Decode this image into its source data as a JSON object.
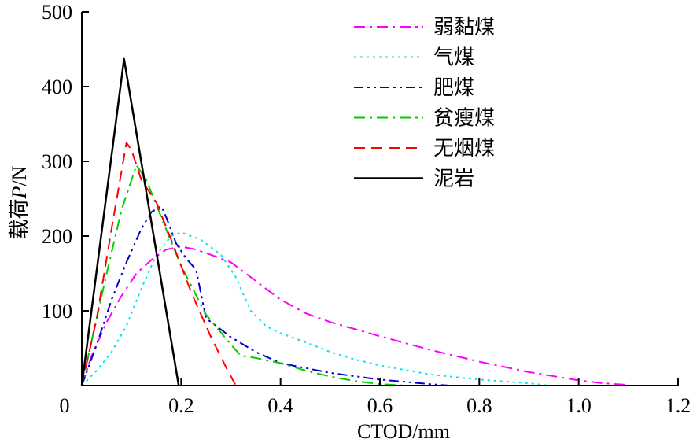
{
  "chart_data": {
    "type": "line",
    "xlabel": "CTOD/mm",
    "ylabel_prefix": "载荷",
    "ylabel_var": "P",
    "ylabel_suffix": "/N",
    "xlim": [
      0,
      1.2
    ],
    "ylim": [
      0,
      500
    ],
    "xticks": [
      0,
      0.2,
      0.4,
      0.6,
      0.8,
      1.0,
      1.2
    ],
    "xtick_labels": [
      "0",
      "0.2",
      "0.4",
      "0.6",
      "0.8",
      "1.0",
      "1.2"
    ],
    "yticks": [
      100,
      200,
      300,
      400,
      500
    ],
    "ytick_labels": [
      "100",
      "200",
      "300",
      "400",
      "500"
    ],
    "grid": false,
    "legend_position": "top-right",
    "series": [
      {
        "name": "弱黏煤",
        "color": "#ff00ff",
        "dash": "dashdot",
        "x": [
          0,
          0.02,
          0.05,
          0.08,
          0.11,
          0.14,
          0.17,
          0.2,
          0.23,
          0.26,
          0.3,
          0.35,
          0.4,
          0.45,
          0.5,
          0.6,
          0.7,
          0.8,
          0.9,
          1.0,
          1.05,
          1.1
        ],
        "y": [
          0,
          40,
          85,
          120,
          150,
          168,
          182,
          186,
          182,
          175,
          165,
          140,
          115,
          97,
          85,
          66,
          48,
          32,
          18,
          7,
          3,
          1
        ]
      },
      {
        "name": "气煤",
        "color": "#00e5e5",
        "dash": "dot",
        "x": [
          0,
          0.03,
          0.06,
          0.09,
          0.12,
          0.15,
          0.18,
          0.2,
          0.24,
          0.28,
          0.31,
          0.34,
          0.37,
          0.4,
          0.45,
          0.5,
          0.55,
          0.6,
          0.7,
          0.8,
          0.9,
          0.94
        ],
        "y": [
          0,
          20,
          45,
          80,
          130,
          175,
          200,
          205,
          195,
          175,
          145,
          100,
          80,
          70,
          58,
          45,
          35,
          27,
          15,
          8,
          3,
          0
        ]
      },
      {
        "name": "肥煤",
        "color": "#0000cc",
        "dash": "dashdotdot",
        "x": [
          0,
          0.03,
          0.06,
          0.09,
          0.12,
          0.14,
          0.16,
          0.17,
          0.19,
          0.21,
          0.23,
          0.25,
          0.3,
          0.35,
          0.4,
          0.5,
          0.6,
          0.7,
          0.74
        ],
        "y": [
          0,
          55,
          115,
          165,
          210,
          232,
          240,
          225,
          190,
          170,
          155,
          90,
          65,
          45,
          30,
          17,
          8,
          2,
          0
        ]
      },
      {
        "name": "贫瘦煤",
        "color": "#00cc00",
        "dash": "dashdot",
        "x": [
          0,
          0.02,
          0.05,
          0.08,
          0.11,
          0.13,
          0.16,
          0.2,
          0.25,
          0.3,
          0.32,
          0.35,
          0.4,
          0.45,
          0.5,
          0.55,
          0.6,
          0.65
        ],
        "y": [
          0,
          60,
          150,
          235,
          295,
          275,
          225,
          160,
          95,
          55,
          40,
          37,
          30,
          20,
          12,
          6,
          2,
          0
        ]
      },
      {
        "name": "无烟煤",
        "color": "#ff0000",
        "dash": "dash",
        "x": [
          0,
          0.03,
          0.06,
          0.09,
          0.1,
          0.12,
          0.15,
          0.18,
          0.22,
          0.26,
          0.29,
          0.31
        ],
        "y": [
          0,
          90,
          210,
          325,
          315,
          275,
          245,
          195,
          125,
          65,
          25,
          0
        ]
      },
      {
        "name": "泥岩",
        "color": "#000000",
        "dash": "solid",
        "x": [
          0,
          0.085,
          0.195
        ],
        "y": [
          0,
          437,
          0
        ]
      }
    ]
  }
}
